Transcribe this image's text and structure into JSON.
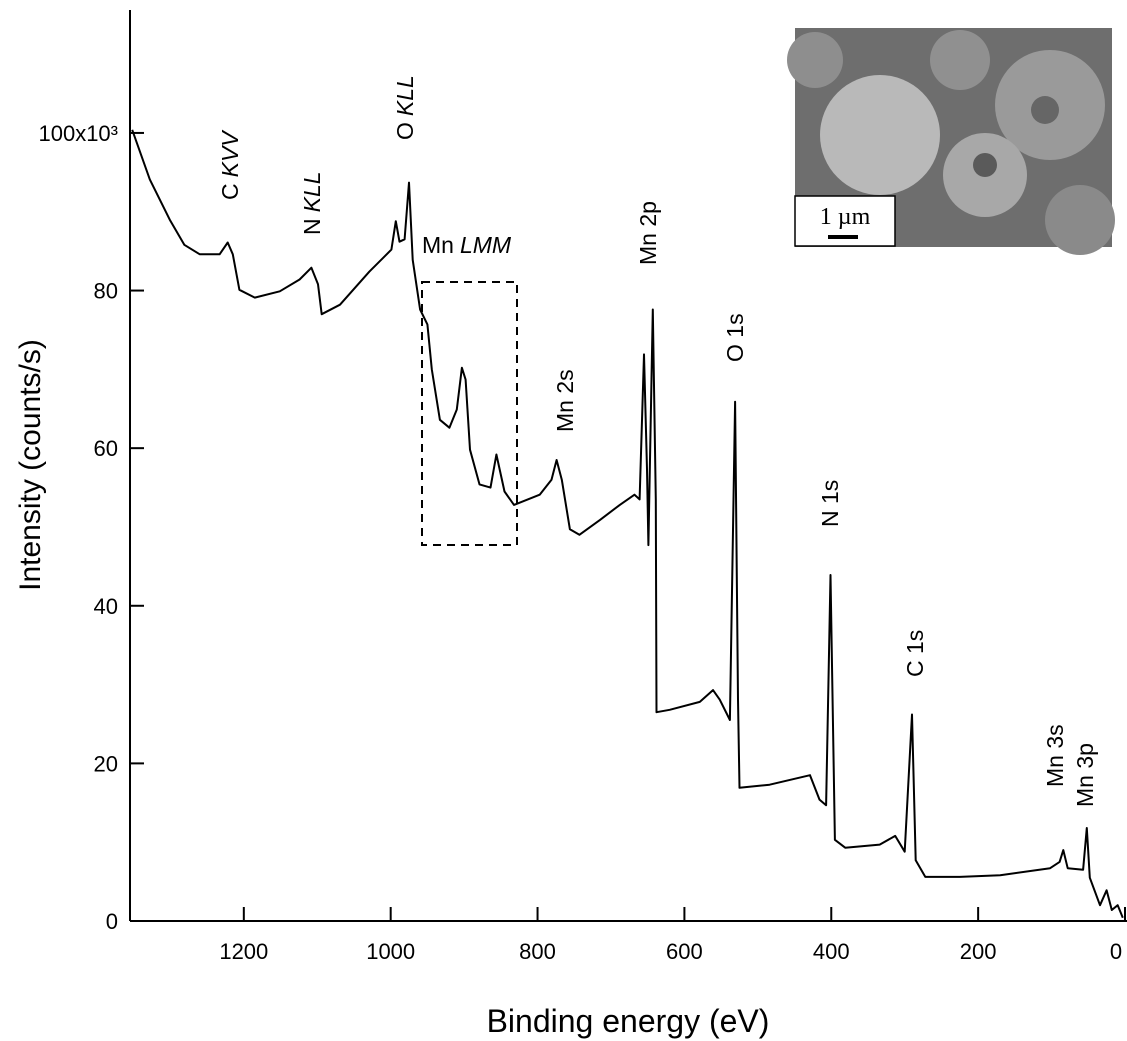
{
  "chart_data": {
    "type": "line",
    "xlabel": "Binding energy (eV)",
    "ylabel": "Intensity (counts/s)",
    "x": [
      1352,
      1328,
      1301,
      1281,
      1260,
      1233,
      1222,
      1215,
      1206,
      1185,
      1151,
      1124,
      1108,
      1099,
      1094,
      1069,
      1029,
      999,
      993,
      988,
      981,
      975,
      970,
      960,
      950,
      944,
      933,
      920,
      910,
      903,
      898,
      892,
      879,
      864,
      856,
      845,
      832,
      797,
      781,
      774,
      767,
      756,
      743,
      715,
      688,
      668,
      661,
      655,
      651,
      649,
      643,
      639,
      638,
      620,
      579,
      561,
      552,
      538,
      531,
      527,
      525,
      484,
      429,
      416,
      407,
      401,
      395,
      381,
      334,
      313,
      300,
      290,
      285,
      272,
      225,
      170,
      102,
      89,
      84,
      78,
      57,
      52,
      48,
      34,
      25,
      18,
      10,
      3
    ],
    "values": [
      100.4,
      94.1,
      89.0,
      85.8,
      84.6,
      84.6,
      86.1,
      84.6,
      80.1,
      79.1,
      79.9,
      81.4,
      82.9,
      80.8,
      77.0,
      78.2,
      82.4,
      85.2,
      88.8,
      86.2,
      86.5,
      93.7,
      83.9,
      77.6,
      75.7,
      70.0,
      63.6,
      62.6,
      64.9,
      70.2,
      68.7,
      59.8,
      55.4,
      55.0,
      59.2,
      54.5,
      52.8,
      54.1,
      56.0,
      58.5,
      56.0,
      49.7,
      49.0,
      50.9,
      52.8,
      54.1,
      53.5,
      71.9,
      57.3,
      47.7,
      77.6,
      53.5,
      26.5,
      26.8,
      27.8,
      29.3,
      28.1,
      25.5,
      65.9,
      28.1,
      16.9,
      17.3,
      18.5,
      15.4,
      14.7,
      43.9,
      10.3,
      9.3,
      9.7,
      10.8,
      8.8,
      26.2,
      7.7,
      5.6,
      5.6,
      5.8,
      6.7,
      7.5,
      9.0,
      6.7,
      6.5,
      11.8,
      5.5,
      2.0,
      3.9,
      1.4,
      2.0,
      0.4
    ],
    "color": "#000000",
    "xlim": [
      1355,
      0
    ],
    "xticks": [
      1200,
      1000,
      800,
      600,
      400,
      200,
      0
    ],
    "ylim": [
      0,
      115.6
    ],
    "yticks": [
      0,
      20,
      40,
      60,
      80,
      {
        "value": 100,
        "label": "100x10³"
      }
    ],
    "annotations": [
      {
        "element": "C",
        "transition": "KVV"
      },
      {
        "element": "N",
        "transition": "KLL"
      },
      {
        "element": "O",
        "transition": "KLL"
      },
      {
        "element": "Mn",
        "transition": "LMM"
      },
      {
        "text": "Mn 2p"
      },
      {
        "text": "Mn 2s"
      },
      {
        "text": "O 1s"
      },
      {
        "text": "N 1s"
      },
      {
        "text": "C 1s"
      },
      {
        "text": "Mn 3s"
      },
      {
        "text": "Mn 3p"
      }
    ],
    "inset": {
      "scale_bar": "1 µm"
    }
  }
}
